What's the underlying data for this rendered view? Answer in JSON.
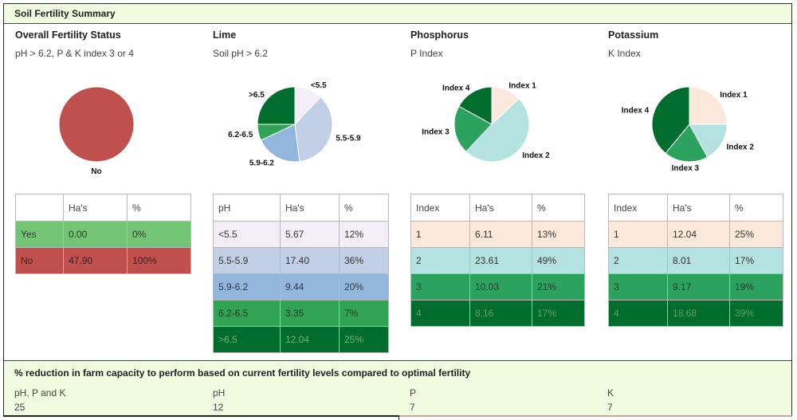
{
  "header": {
    "title": "Soil Fertility Summary"
  },
  "panels": [
    {
      "title": "Overall Fertility Status",
      "subtitle": "pH > 6.2, P & K index 3 or 4",
      "chart_data": {
        "type": "pie",
        "categories": [
          "Yes",
          "No"
        ],
        "values": [
          0,
          100
        ],
        "colors": [
          "#74c476",
          "#c0504d"
        ],
        "labels_shown": [
          "",
          "No"
        ]
      },
      "table": {
        "columns": [
          "",
          "Ha's",
          "%"
        ],
        "rows": [
          {
            "cells": [
              "Yes",
              "0.00",
              "0%"
            ],
            "bg": "#74c476",
            "fg": "#2f3a2f"
          },
          {
            "cells": [
              "No",
              "47.90",
              "100%"
            ],
            "bg": "#c0504d",
            "fg": "#3b2020"
          }
        ]
      }
    },
    {
      "title": "Lime",
      "subtitle": "Soil pH > 6.2",
      "chart_data": {
        "type": "pie",
        "categories": [
          "<5.5",
          "5.5-5.9",
          "5.9-6.2",
          "6.2-6.5",
          ">6.5"
        ],
        "values": [
          12,
          36,
          20,
          7,
          25
        ],
        "colors": [
          "#f3eef6",
          "#c3cfe6",
          "#93b6dc",
          "#31a354",
          "#006d2c"
        ]
      },
      "table": {
        "columns": [
          "pH",
          "Ha's",
          "%"
        ],
        "rows": [
          {
            "cells": [
              "<5.5",
              "5.67",
              "12%"
            ],
            "bg": "#f3eef6",
            "fg": "#333"
          },
          {
            "cells": [
              "5.5-5.9",
              "17.40",
              "36%"
            ],
            "bg": "#c3cfe6",
            "fg": "#333"
          },
          {
            "cells": [
              "5.9-6.2",
              "9.44",
              "20%"
            ],
            "bg": "#93b6dc",
            "fg": "#2c3b4a"
          },
          {
            "cells": [
              "6.2-6.5",
              "3.35",
              "7%"
            ],
            "bg": "#31a354",
            "fg": "#203a24"
          },
          {
            "cells": [
              ">6.5",
              "12.04",
              "25%"
            ],
            "bg": "#006d2c",
            "fg": "#6fae7f"
          }
        ]
      }
    },
    {
      "title": "Phosphorus",
      "subtitle": "P Index",
      "chart_data": {
        "type": "pie",
        "categories": [
          "Index 1",
          "Index 2",
          "Index 3",
          "Index 4"
        ],
        "values": [
          13,
          49,
          21,
          17
        ],
        "colors": [
          "#fde8dc",
          "#b3e2e1",
          "#2ca25f",
          "#006d2c"
        ]
      },
      "table": {
        "columns": [
          "Index",
          "Ha's",
          "%"
        ],
        "rows": [
          {
            "cells": [
              "1",
              "6.11",
              "13%"
            ],
            "bg": "#fde8dc",
            "fg": "#333"
          },
          {
            "cells": [
              "2",
              "23.61",
              "49%"
            ],
            "bg": "#b3e2e1",
            "fg": "#333"
          },
          {
            "cells": [
              "3",
              "10.03",
              "21%"
            ],
            "bg": "#2ca25f",
            "fg": "#1f3b27"
          },
          {
            "cells": [
              "4",
              "8.16",
              "17%"
            ],
            "bg": "#006d2c",
            "fg": "#5f9f70"
          }
        ]
      }
    },
    {
      "title": "Potassium",
      "subtitle": "K Index",
      "chart_data": {
        "type": "pie",
        "categories": [
          "Index 1",
          "Index 2",
          "Index 3",
          "Index 4"
        ],
        "values": [
          25,
          17,
          19,
          39
        ],
        "colors": [
          "#fde8dc",
          "#b3e2e1",
          "#2ca25f",
          "#006d2c"
        ]
      },
      "table": {
        "columns": [
          "Index",
          "Ha's",
          "%"
        ],
        "rows": [
          {
            "cells": [
              "1",
              "12.04",
              "25%"
            ],
            "bg": "#fde8dc",
            "fg": "#333"
          },
          {
            "cells": [
              "2",
              "8.01",
              "17%"
            ],
            "bg": "#b3e2e1",
            "fg": "#333"
          },
          {
            "cells": [
              "3",
              "9.17",
              "19%"
            ],
            "bg": "#2ca25f",
            "fg": "#1f3b27"
          },
          {
            "cells": [
              "4",
              "18.68",
              "39%"
            ],
            "bg": "#006d2c",
            "fg": "#5f9f70"
          }
        ]
      }
    }
  ],
  "footer": {
    "title": "% reduction in farm capacity to perform based on current fertility levels compared to optimal fertility",
    "items": [
      {
        "label": "pH, P and K",
        "value": "25"
      },
      {
        "label": "pH",
        "value": "12"
      },
      {
        "label": "P",
        "value": "7"
      },
      {
        "label": "K",
        "value": "7"
      }
    ]
  }
}
